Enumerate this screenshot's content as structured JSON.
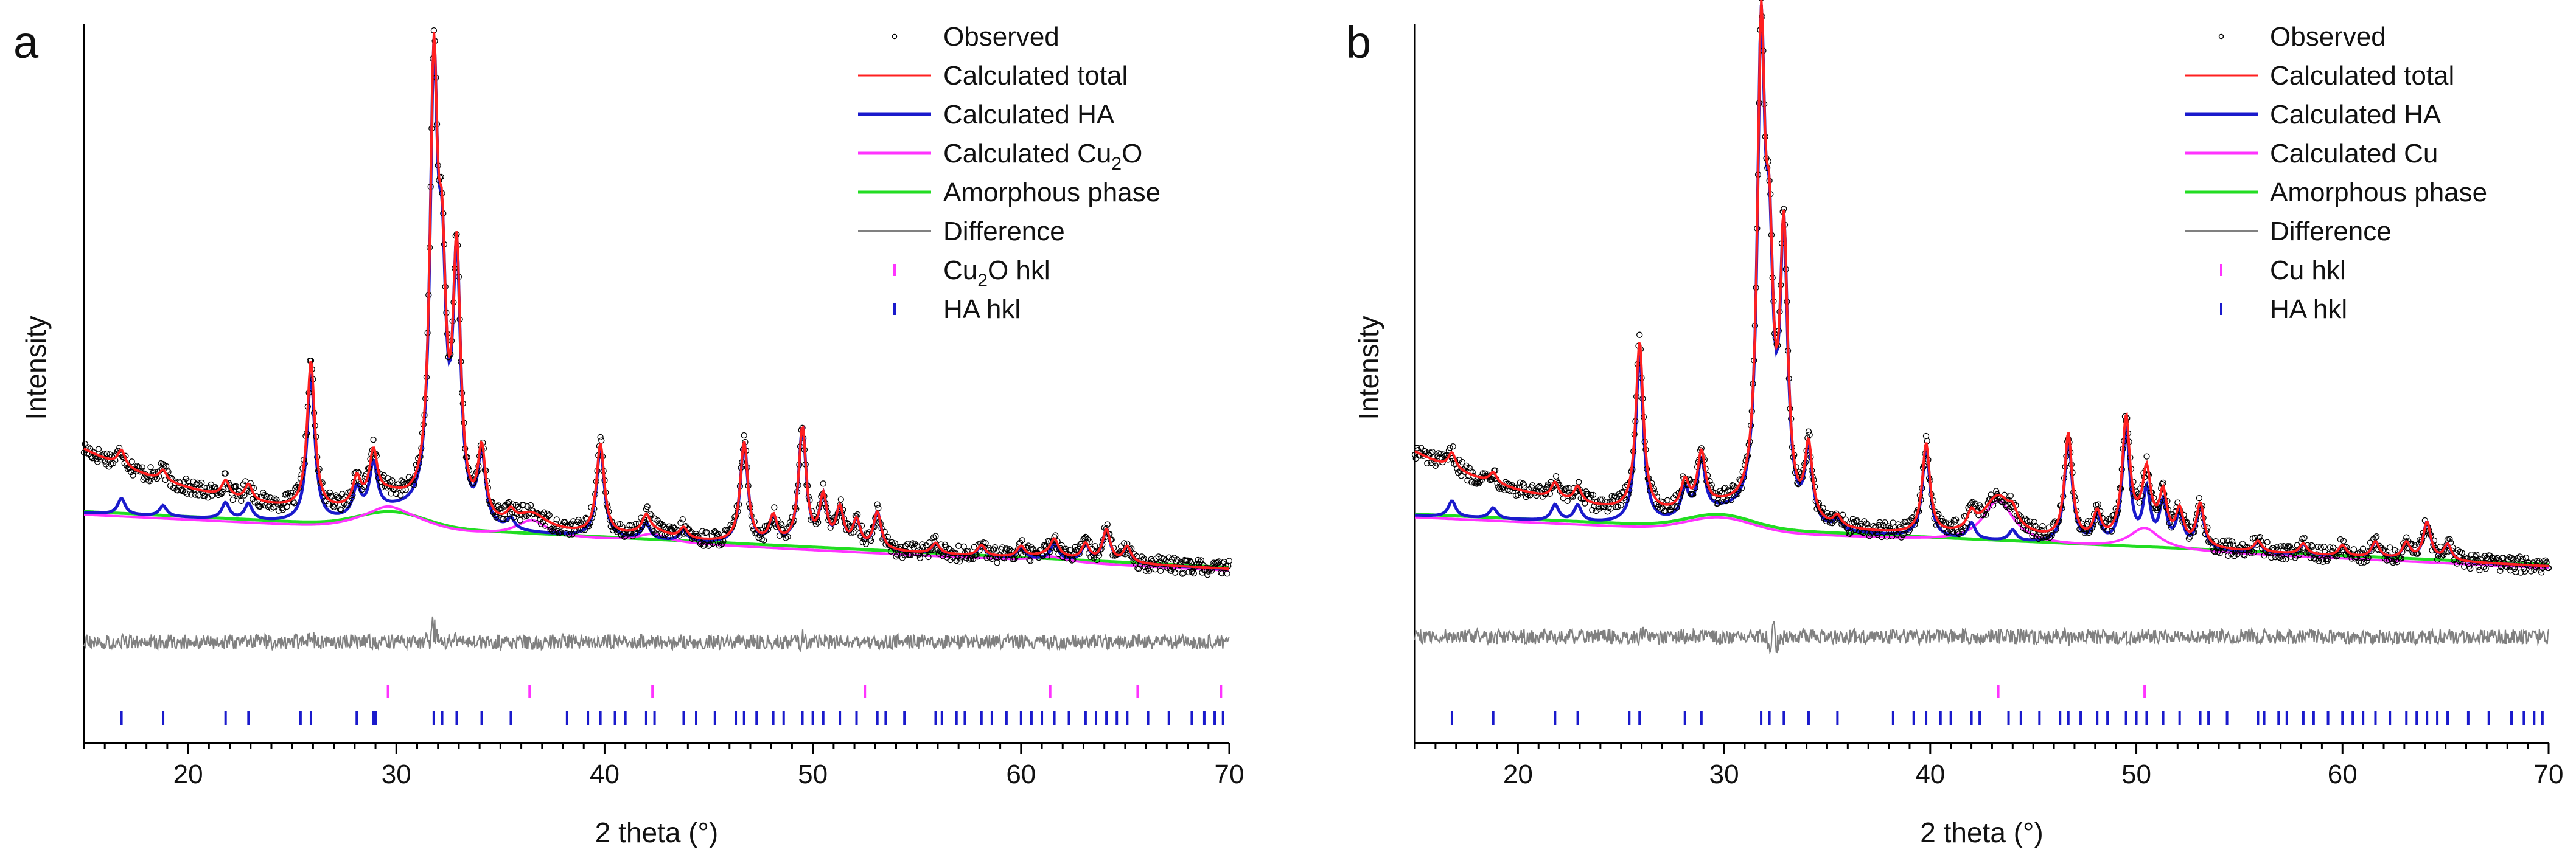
{
  "panels": [
    {
      "label": "a",
      "legend": [
        {
          "text": "Observed",
          "kind": "observed"
        },
        {
          "text": "Calculated total",
          "kind": "total"
        },
        {
          "text": "Calculated HA",
          "kind": "ha"
        },
        {
          "text": "Calculated Cu",
          "sub": "2",
          "after": "O",
          "kind": "phase"
        },
        {
          "text": "Amorphous phase",
          "kind": "amorphous"
        },
        {
          "text": "Difference",
          "kind": "difference"
        },
        {
          "text": "Cu",
          "sub": "2",
          "after": "O hkl",
          "kind": "phase-hkl"
        },
        {
          "text": "HA hkl",
          "kind": "ha-hkl"
        }
      ]
    },
    {
      "label": "b",
      "legend": [
        {
          "text": "Observed",
          "kind": "observed"
        },
        {
          "text": "Calculated total",
          "kind": "total"
        },
        {
          "text": "Calculated HA",
          "kind": "ha"
        },
        {
          "text": "Calculated Cu",
          "kind": "phase"
        },
        {
          "text": "Amorphous phase",
          "kind": "amorphous"
        },
        {
          "text": "Difference",
          "kind": "difference"
        },
        {
          "text": "Cu hkl",
          "kind": "phase-hkl"
        },
        {
          "text": "HA hkl",
          "kind": "ha-hkl"
        }
      ]
    }
  ],
  "chart_data": [
    {
      "type": "line",
      "title": "a",
      "xlabel": "2 theta (°)",
      "ylabel": "Intensity",
      "xlim": [
        15,
        70
      ],
      "xticks": [
        20,
        30,
        40,
        50,
        60,
        70
      ],
      "ylim": [
        -35,
        100
      ],
      "colors": {
        "observed": "#000000",
        "total": "#ff2020",
        "ha": "#1a1acc",
        "phase": "#ff33ff",
        "amorphous": "#22dd22",
        "difference": "#808080",
        "ha_hkl": "#1a1acc",
        "phase_hkl": "#ff33ff"
      },
      "amorphous": {
        "start": 8.5,
        "end": -2,
        "hump_center": 29.8,
        "hump_height": 2.8,
        "hump_width": 2.2
      },
      "ha_peaks": [
        [
          16.8,
          3
        ],
        [
          18.8,
          2
        ],
        [
          21.8,
          3
        ],
        [
          22.9,
          3
        ],
        [
          25.9,
          28
        ],
        [
          28.1,
          5
        ],
        [
          28.9,
          9
        ],
        [
          31.8,
          80
        ],
        [
          32.2,
          38
        ],
        [
          32.9,
          48
        ],
        [
          34.1,
          13
        ],
        [
          35.5,
          2
        ],
        [
          39.8,
          17
        ],
        [
          42.0,
          3
        ],
        [
          43.8,
          2
        ],
        [
          46.7,
          19
        ],
        [
          48.1,
          5
        ],
        [
          49.5,
          22
        ],
        [
          50.5,
          9
        ],
        [
          51.3,
          7
        ],
        [
          52.1,
          5
        ],
        [
          53.1,
          7
        ],
        [
          55.9,
          2
        ],
        [
          58.1,
          2
        ],
        [
          60.0,
          2
        ],
        [
          61.6,
          3
        ],
        [
          63.1,
          3
        ],
        [
          64.1,
          6
        ],
        [
          65.1,
          3
        ]
      ],
      "phase_peaks": [
        [
          29.6,
          1.5
        ],
        [
          36.5,
          3
        ],
        [
          42.3,
          1.5
        ],
        [
          61.4,
          1
        ]
      ],
      "diff_spikes": [
        [
          25.9,
          3
        ],
        [
          31.8,
          8
        ],
        [
          32.9,
          3
        ],
        [
          49.5,
          2
        ]
      ],
      "baseline": -16,
      "phase_hkl": [
        29.6,
        36.4,
        42.3,
        52.5,
        61.4,
        65.6,
        69.6
      ],
      "ha_hkl": [
        16.8,
        18.8,
        21.8,
        22.9,
        25.4,
        25.9,
        28.1,
        28.9,
        29.0,
        31.8,
        32.2,
        32.9,
        34.1,
        35.5,
        38.2,
        39.2,
        39.8,
        40.5,
        41.0,
        42.0,
        42.4,
        43.8,
        44.4,
        45.3,
        46.3,
        46.7,
        47.3,
        48.1,
        48.6,
        49.5,
        50.0,
        50.5,
        51.3,
        52.1,
        53.1,
        53.5,
        54.4,
        55.9,
        56.2,
        56.9,
        57.3,
        58.1,
        58.6,
        59.3,
        60.0,
        60.5,
        61.0,
        61.6,
        62.3,
        63.1,
        63.6,
        64.1,
        64.6,
        65.1,
        66.1,
        67.1,
        68.2,
        68.8,
        69.3,
        69.7
      ]
    },
    {
      "type": "line",
      "title": "b",
      "xlabel": "2 theta (°)",
      "ylabel": "Intensity",
      "xlim": [
        15,
        70
      ],
      "xticks": [
        20,
        30,
        40,
        50,
        60,
        70
      ],
      "ylim": [
        -35,
        100
      ],
      "colors": {
        "observed": "#000000",
        "total": "#ff2020",
        "ha": "#1a1acc",
        "phase": "#ff33ff",
        "amorphous": "#22dd22",
        "difference": "#808080",
        "ha_hkl": "#1a1acc",
        "phase_hkl": "#ff33ff"
      },
      "amorphous": {
        "start": 8,
        "end": -1.5,
        "hump_center": 29.8,
        "hump_height": 2.5,
        "hump_width": 2.2
      },
      "ha_peaks": [
        [
          16.8,
          3
        ],
        [
          18.8,
          2
        ],
        [
          21.8,
          3
        ],
        [
          22.9,
          3
        ],
        [
          25.9,
          32
        ],
        [
          28.1,
          5
        ],
        [
          28.9,
          10
        ],
        [
          31.8,
          86
        ],
        [
          32.2,
          40
        ],
        [
          32.9,
          52
        ],
        [
          34.1,
          14
        ],
        [
          35.5,
          2
        ],
        [
          39.8,
          17
        ],
        [
          42.0,
          3
        ],
        [
          44.0,
          2
        ],
        [
          46.7,
          20
        ],
        [
          48.1,
          5
        ],
        [
          49.5,
          22
        ],
        [
          50.5,
          10
        ],
        [
          51.3,
          8
        ],
        [
          52.1,
          6
        ],
        [
          53.1,
          8
        ],
        [
          55.9,
          2
        ],
        [
          58.1,
          2
        ],
        [
          60.0,
          2
        ],
        [
          61.6,
          3
        ],
        [
          63.1,
          3
        ],
        [
          64.1,
          7
        ],
        [
          65.1,
          3
        ]
      ],
      "phase_peaks": [
        [
          43.3,
          8
        ],
        [
          50.4,
          4
        ],
        [
          74.1,
          0
        ]
      ],
      "diff_spikes": [
        [
          25.9,
          3
        ],
        [
          32.4,
          -9
        ],
        [
          46.7,
          2
        ]
      ],
      "baseline": -15,
      "phase_hkl": [
        43.3,
        50.4
      ],
      "ha_hkl": [
        16.8,
        18.8,
        21.8,
        22.9,
        25.4,
        25.9,
        28.1,
        28.9,
        31.8,
        32.2,
        32.9,
        34.1,
        35.5,
        38.2,
        39.2,
        39.8,
        40.5,
        41.0,
        42.0,
        42.4,
        43.8,
        44.4,
        45.3,
        46.3,
        46.7,
        47.3,
        48.1,
        48.6,
        49.5,
        50.0,
        50.5,
        51.3,
        52.1,
        53.1,
        53.5,
        54.4,
        55.9,
        56.2,
        56.9,
        57.3,
        58.1,
        58.6,
        59.3,
        60.0,
        60.5,
        61.0,
        61.6,
        62.3,
        63.1,
        63.6,
        64.1,
        64.6,
        65.1,
        66.1,
        67.1,
        68.2,
        68.8,
        69.3,
        69.7
      ]
    }
  ]
}
